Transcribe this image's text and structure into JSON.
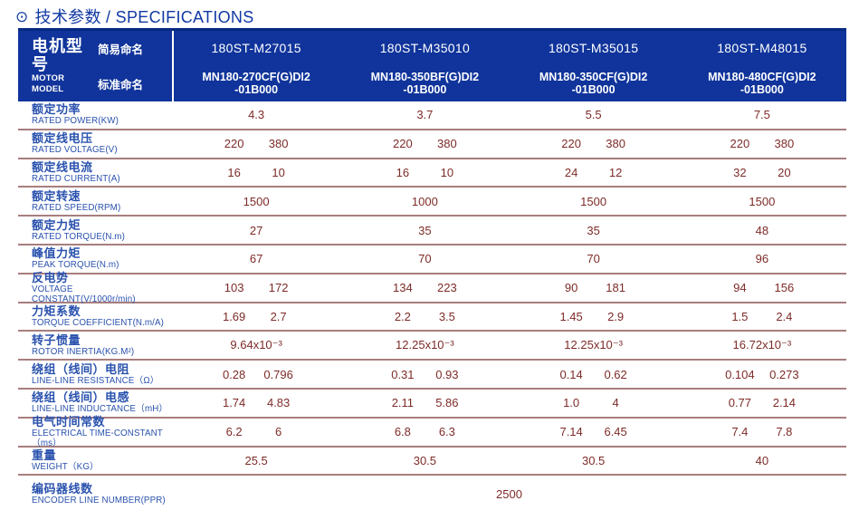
{
  "title": {
    "icon": "⊙",
    "text": "技术参数 / SPECIFICATIONS"
  },
  "colors": {
    "header_bg": "#10349b",
    "header_top_border": "#062a80",
    "title_blue": "#1039a3",
    "label_blue": "#2a52ae",
    "value_maroon": "#7d2b28",
    "row_divider": "#a87e7e",
    "header_text": "#ffffff"
  },
  "table": {
    "header": {
      "motor_model_zh": "电机型号",
      "motor_model_en": "MOTOR MODEL",
      "simple_name_label": "简易命名",
      "standard_name_label": "标准命名",
      "columns": [
        {
          "simple": "180ST-M27015",
          "std1": "MN180-270CF(G)DI2",
          "std2": "-01B000"
        },
        {
          "simple": "180ST-M35010",
          "std1": "MN180-350BF(G)DI2",
          "std2": "-01B000"
        },
        {
          "simple": "180ST-M35015",
          "std1": "MN180-350CF(G)DI2",
          "std2": "-01B000"
        },
        {
          "simple": "180ST-M48015",
          "std1": "MN180-480CF(G)DI2",
          "std2": "-01B000"
        }
      ]
    },
    "rows": [
      {
        "zh": "额定功率",
        "en": "RATED POWER(KW)",
        "type": "single",
        "values": [
          "4.3",
          "3.7",
          "5.5",
          "7.5"
        ]
      },
      {
        "zh": "额定线电压",
        "en": "RATED VOLTAGE(V)",
        "type": "pair",
        "values": [
          [
            "220",
            "380"
          ],
          [
            "220",
            "380"
          ],
          [
            "220",
            "380"
          ],
          [
            "220",
            "380"
          ]
        ]
      },
      {
        "zh": "额定线电流",
        "en": "RATED CURRENT(A)",
        "type": "pair",
        "values": [
          [
            "16",
            "10"
          ],
          [
            "16",
            "10"
          ],
          [
            "24",
            "12"
          ],
          [
            "32",
            "20"
          ]
        ]
      },
      {
        "zh": "额定转速",
        "en": "RATED SPEED(RPM)",
        "type": "single",
        "values": [
          "1500",
          "1000",
          "1500",
          "1500"
        ]
      },
      {
        "zh": "额定力矩",
        "en": "RATED TORQUE(N.m)",
        "type": "single",
        "values": [
          "27",
          "35",
          "35",
          "48"
        ]
      },
      {
        "zh": "峰值力矩",
        "en": "PEAK TORQUE(N.m)",
        "type": "single",
        "values": [
          "67",
          "70",
          "70",
          "96"
        ]
      },
      {
        "zh": "反电势",
        "en": "VOLTAGE CONSTANT(V/1000r/min)",
        "type": "pair",
        "values": [
          [
            "103",
            "172"
          ],
          [
            "134",
            "223"
          ],
          [
            "90",
            "181"
          ],
          [
            "94",
            "156"
          ]
        ]
      },
      {
        "zh": "力矩系数",
        "en": "TORQUE COEFFICIENT(N.m/A)",
        "type": "pair",
        "values": [
          [
            "1.69",
            "2.7"
          ],
          [
            "2.2",
            "3.5"
          ],
          [
            "1.45",
            "2.9"
          ],
          [
            "1.5",
            "2.4"
          ]
        ]
      },
      {
        "zh": "转子惯量",
        "en": "ROTOR INERTIA(KG.M²)",
        "type": "single",
        "values": [
          "9.64x10⁻³",
          "12.25x10⁻³",
          "12.25x10⁻³",
          "16.72x10⁻³"
        ]
      },
      {
        "zh": "绕组（线间）电阻",
        "en": "LINE-LINE RESISTANCE（Ω）",
        "type": "pair",
        "values": [
          [
            "0.28",
            "0.796"
          ],
          [
            "0.31",
            "0.93"
          ],
          [
            "0.14",
            "0.62"
          ],
          [
            "0.104",
            "0.273"
          ]
        ]
      },
      {
        "zh": "绕组（线间）电感",
        "en": "LINE-LINE INDUCTANCE（mH）",
        "type": "pair",
        "values": [
          [
            "1.74",
            "4.83"
          ],
          [
            "2.11",
            "5.86"
          ],
          [
            "1.0",
            "4"
          ],
          [
            "0.77",
            "2.14"
          ]
        ]
      },
      {
        "zh": "电气时间常数",
        "en": "ELECTRICAL TIME-CONSTANT（ms）",
        "type": "pair",
        "values": [
          [
            "6.2",
            "6"
          ],
          [
            "6.8",
            "6.3"
          ],
          [
            "7.14",
            "6.45"
          ],
          [
            "7.4",
            "7.8"
          ]
        ]
      },
      {
        "zh": "重量",
        "en": "WEIGHT（KG）",
        "type": "single",
        "values": [
          "25.5",
          "30.5",
          "30.5",
          "40"
        ]
      },
      {
        "zh": "编码器线数",
        "en": "ENCODER LINE NUMBER(PPR)",
        "type": "span",
        "values": [
          "2500"
        ]
      }
    ]
  }
}
